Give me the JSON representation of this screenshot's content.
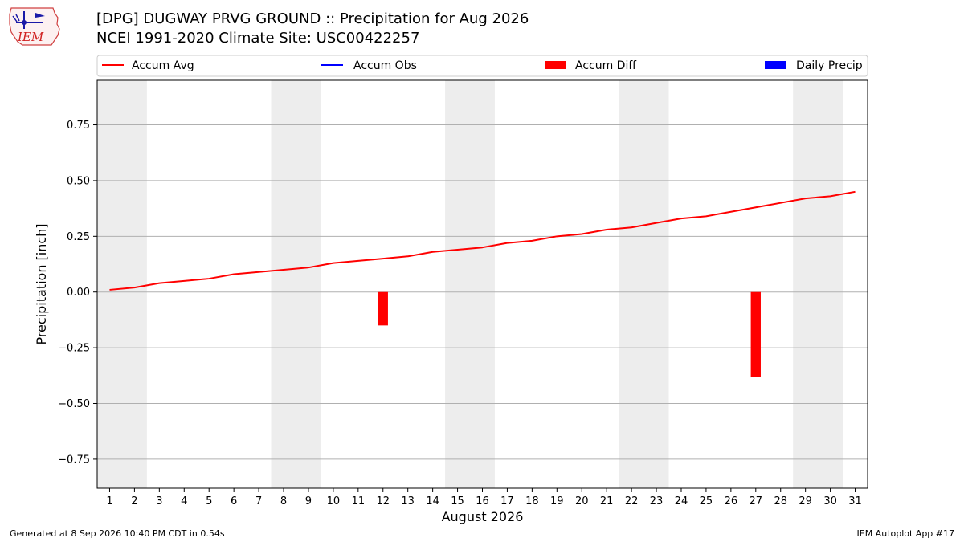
{
  "header": {
    "logo_text": "IEM",
    "title_line1": "[DPG] DUGWAY PRVG GROUND :: Precipitation for Aug 2026",
    "title_line2": "NCEI 1991-2020 Climate Site: USC00422257"
  },
  "footer": {
    "left": "Generated at 8 Sep 2026 10:40 PM CDT in 0.54s",
    "right": "IEM Autoplot App #17"
  },
  "chart_data": {
    "type": "line",
    "xlabel": "August 2026",
    "ylabel": "Precipitation [inch]",
    "x": [
      1,
      2,
      3,
      4,
      5,
      6,
      7,
      8,
      9,
      10,
      11,
      12,
      13,
      14,
      15,
      16,
      17,
      18,
      19,
      20,
      21,
      22,
      23,
      24,
      25,
      26,
      27,
      28,
      29,
      30,
      31
    ],
    "xlim": [
      0.5,
      31.5
    ],
    "ylim": [
      -0.88,
      0.95
    ],
    "yticks": [
      -0.75,
      -0.5,
      -0.25,
      0.0,
      0.25,
      0.5,
      0.75
    ],
    "ytick_labels": [
      "−0.75",
      "−0.50",
      "−0.25",
      "0.00",
      "0.25",
      "0.50",
      "0.75"
    ],
    "grid": "horizontal",
    "legend": {
      "placement": "top",
      "entries": [
        {
          "label": "Accum Avg",
          "kind": "line",
          "color": "#ff0000"
        },
        {
          "label": "Accum Obs",
          "kind": "line",
          "color": "#0000ff"
        },
        {
          "label": "Accum Diff",
          "kind": "bar",
          "color": "#ff0000"
        },
        {
          "label": "Daily Precip",
          "kind": "bar",
          "color": "#0000ff"
        }
      ]
    },
    "weekend_spans": [
      [
        1,
        2
      ],
      [
        8,
        9
      ],
      [
        15,
        16
      ],
      [
        22,
        23
      ],
      [
        29,
        30
      ]
    ],
    "series": [
      {
        "name": "Accum Avg",
        "kind": "line",
        "color": "#ff0000",
        "values": [
          0.01,
          0.02,
          0.04,
          0.05,
          0.06,
          0.08,
          0.09,
          0.1,
          0.11,
          0.13,
          0.14,
          0.15,
          0.16,
          0.18,
          0.19,
          0.2,
          0.22,
          0.23,
          0.25,
          0.26,
          0.28,
          0.29,
          0.31,
          0.33,
          0.34,
          0.36,
          0.38,
          0.4,
          0.42,
          0.43,
          0.45
        ]
      },
      {
        "name": "Accum Diff",
        "kind": "bar",
        "color": "#ff0000",
        "points": [
          {
            "x": 12,
            "value": -0.15
          },
          {
            "x": 27,
            "value": -0.38
          }
        ]
      }
    ]
  }
}
